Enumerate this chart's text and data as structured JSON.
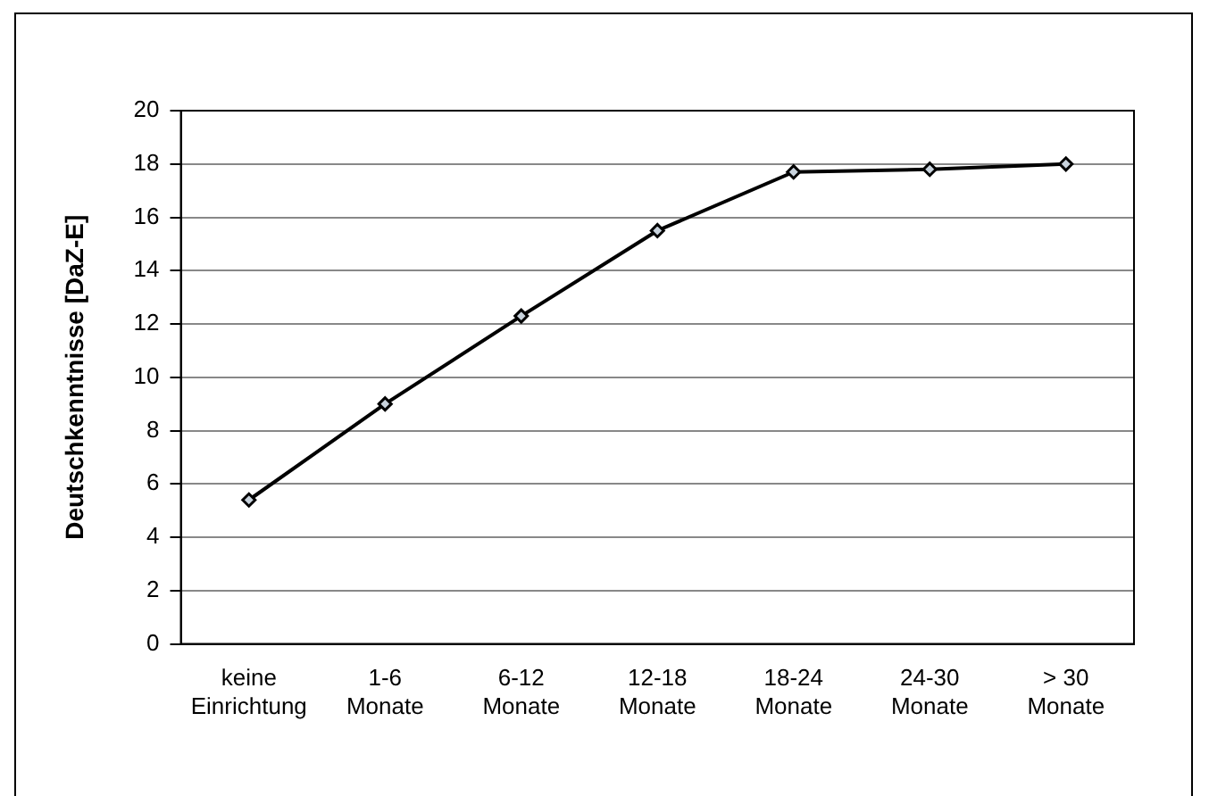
{
  "chart_data": {
    "type": "line",
    "ylabel": "Deutschkenntnisse [DaZ-E]",
    "categories": [
      "keine\nEinrichtung",
      "1-6\nMonate",
      "6-12\nMonate",
      "12-18\nMonate",
      "18-24\nMonate",
      "24-30\nMonate",
      "> 30\nMonate"
    ],
    "series": [
      {
        "color": "#000000",
        "values": [
          5.4,
          9.0,
          12.3,
          15.5,
          17.7,
          17.8,
          18.0
        ]
      }
    ],
    "ylim": [
      0,
      20
    ],
    "yticks": [
      0,
      2,
      4,
      6,
      8,
      10,
      12,
      14,
      16,
      18,
      20
    ],
    "grid": "y",
    "marker": "diamond",
    "line_style": "solid",
    "legend": false
  }
}
